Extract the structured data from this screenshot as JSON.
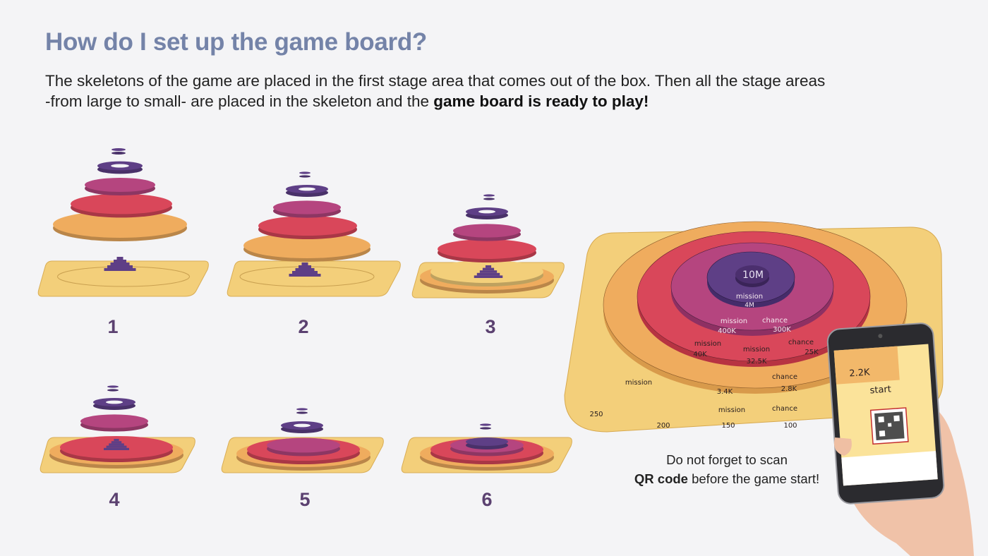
{
  "title": "How do I set up the game board?",
  "intro": {
    "text_1": "The skeletons of the game are placed in the first stage area that comes out of the box. Then all the stage areas",
    "text_2": "-from large to small- are placed in the skeleton and the ",
    "text_bold": "game board is ready to play!"
  },
  "steps": [
    "1",
    "2",
    "3",
    "4",
    "5",
    "6"
  ],
  "board": {
    "center": "10M",
    "labels": {
      "purple_mission": "mission",
      "purple_value": "4M",
      "magenta_mission": "mission",
      "magenta_mission_value": "400K",
      "magenta_chance": "chance",
      "magenta_chance_value": "300K",
      "red_mission": "mission",
      "red_mission_value": "32.5K",
      "red_mission2": "mission",
      "red_mission2_value": "40K",
      "red_chance": "chance",
      "red_chance_value": "25K",
      "orange_value": "3.4K",
      "orange_chance": "chance",
      "orange_chance_value": "2.8K",
      "yellow_mission": "mission",
      "yellow_chance": "chance",
      "yellow_250": "250",
      "yellow_200": "200",
      "yellow_150": "150",
      "yellow_100": "100"
    }
  },
  "phone": {
    "value": "2.2K",
    "start": "start"
  },
  "caption": {
    "line1": "Do not forget to scan",
    "bold": "QR code",
    "line2": " before the game start!"
  },
  "colors": {
    "title": "#7483a8",
    "step_number": "#5b4170",
    "yellow": "#f3cf7a",
    "orange": "#efac5e",
    "red": "#d9475a",
    "magenta": "#b5457f",
    "purple": "#5e3f86"
  }
}
